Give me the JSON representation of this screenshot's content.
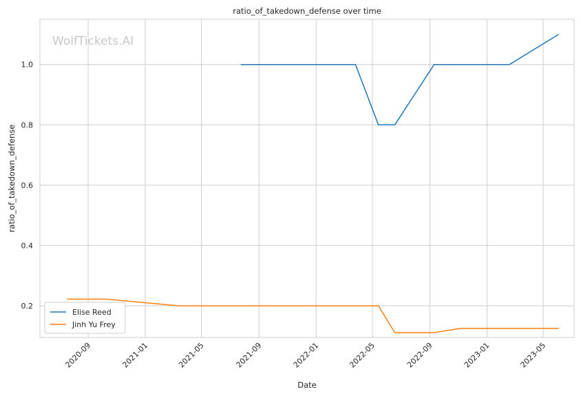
{
  "chart_data": {
    "type": "line",
    "title": "ratio_of_takedown_defense over time",
    "xlabel": "Date",
    "ylabel": "ratio_of_takedown_defense",
    "watermark": "WolfTickets.AI",
    "x_tick_labels": [
      "2020-09",
      "2021-01",
      "2021-05",
      "2021-09",
      "2022-01",
      "2022-05",
      "2022-09",
      "2023-01",
      "2023-05"
    ],
    "y_ticks": [
      0.2,
      0.4,
      0.6,
      0.8,
      1.0
    ],
    "y_tick_labels": [
      "0.2",
      "0.4",
      "0.6",
      "0.8",
      "1.0"
    ],
    "xlim": [
      "2020-05-21",
      "2023-07-06"
    ],
    "ylim": [
      0.095,
      1.15
    ],
    "grid": true,
    "legend_position": "bottom-left",
    "series": [
      {
        "name": "Elise Reed",
        "color": "#1f77b4",
        "points": [
          {
            "x": "2021-07-24",
            "y": 1.0
          },
          {
            "x": "2022-03-26",
            "y": 1.0
          },
          {
            "x": "2022-05-14",
            "y": 0.8
          },
          {
            "x": "2022-06-18",
            "y": 0.8
          },
          {
            "x": "2022-09-10",
            "y": 1.0
          },
          {
            "x": "2023-02-18",
            "y": 1.0
          },
          {
            "x": "2023-06-03",
            "y": 1.1
          }
        ]
      },
      {
        "name": "Jinh Yu Frey",
        "color": "#ff7f0e",
        "points": [
          {
            "x": "2020-07-18",
            "y": 0.222
          },
          {
            "x": "2020-10-10",
            "y": 0.222
          },
          {
            "x": "2021-03-13",
            "y": 0.2
          },
          {
            "x": "2022-05-14",
            "y": 0.2
          },
          {
            "x": "2022-06-18",
            "y": 0.111
          },
          {
            "x": "2022-09-10",
            "y": 0.111
          },
          {
            "x": "2022-11-05",
            "y": 0.125
          },
          {
            "x": "2023-06-03",
            "y": 0.125
          }
        ]
      }
    ]
  }
}
